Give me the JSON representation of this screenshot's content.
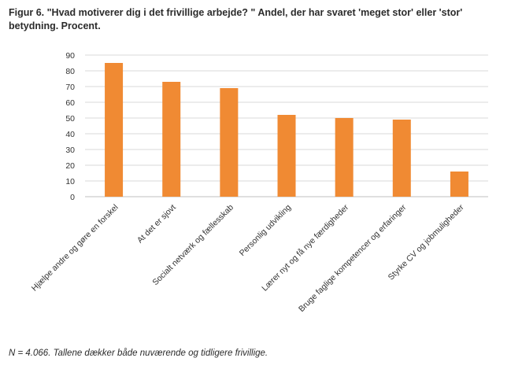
{
  "title": "Figur 6. \"Hvad motiverer dig i det frivillige arbejde? \" Andel, der har svaret 'meget stor' eller 'stor' betydning. Procent.",
  "note": "N = 4.066. Tallene dækker både nuværende og tidligere frivillige.",
  "colors": {
    "bar": "#f08a33",
    "grid": "#d9d9d9",
    "axis": "#bfbfbf"
  },
  "chart_data": {
    "type": "bar",
    "categories": [
      "Hjælpe andre og gøre en forskel",
      "At det er sjovt",
      "Socialt netværk og fællesskab",
      "Personlig udvikling",
      "Lærer nyt og få nye færdigheder",
      "Bruge faglige kompetencer og erfaringer",
      "Styrke CV og jobmuligheder"
    ],
    "values": [
      85,
      73,
      69,
      52,
      50,
      49,
      16
    ],
    "ylim": [
      0,
      90
    ],
    "yticks": [
      0,
      10,
      20,
      30,
      40,
      50,
      60,
      70,
      80,
      90
    ],
    "grid": true,
    "legend": "none"
  }
}
